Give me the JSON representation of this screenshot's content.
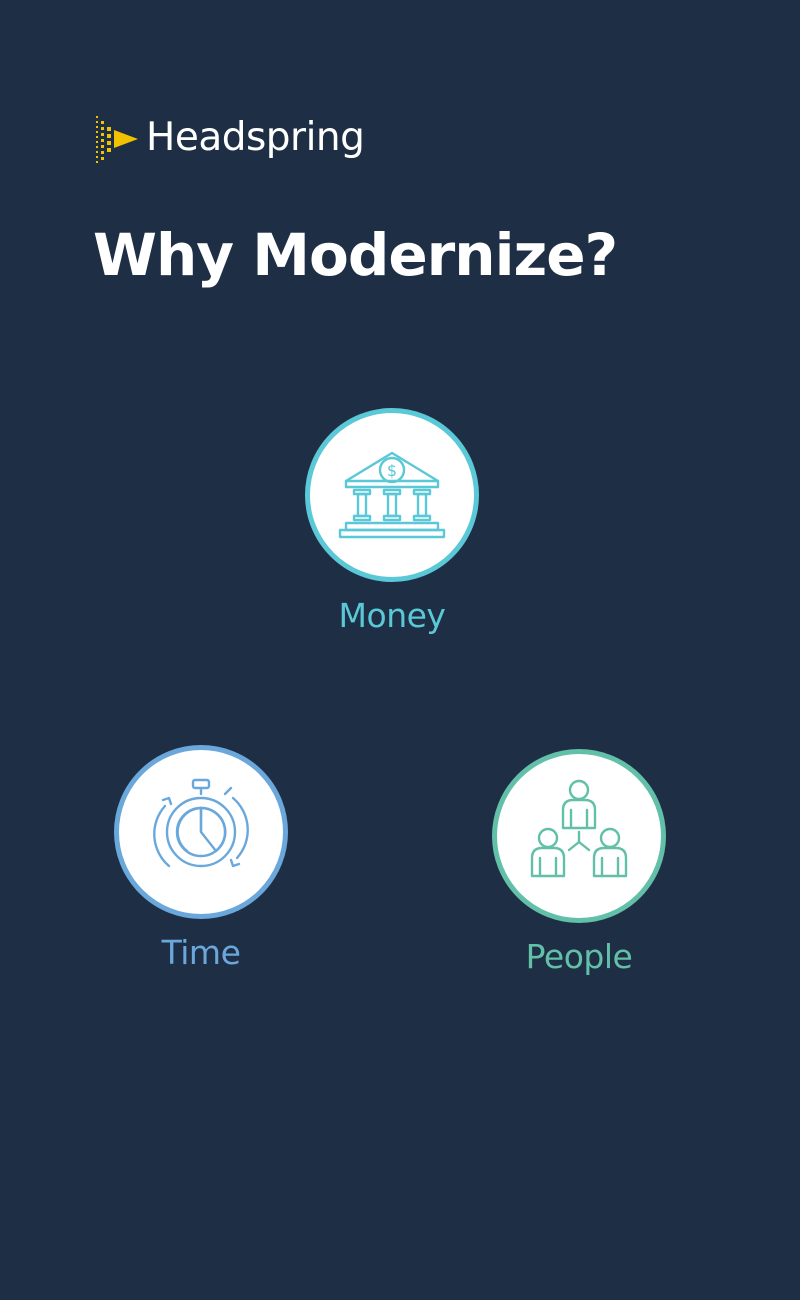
{
  "brand": {
    "name": "Headspring",
    "accent": "#f2c200"
  },
  "page": {
    "title": "Why Modernize?",
    "background": "#1e2f45"
  },
  "reasons": [
    {
      "label": "Money",
      "icon": "bank-icon",
      "color": "#5ac8d6"
    },
    {
      "label": "Time",
      "icon": "stopwatch-icon",
      "color": "#6aa8dc"
    },
    {
      "label": "People",
      "icon": "people-network-icon",
      "color": "#62bfa8"
    }
  ]
}
